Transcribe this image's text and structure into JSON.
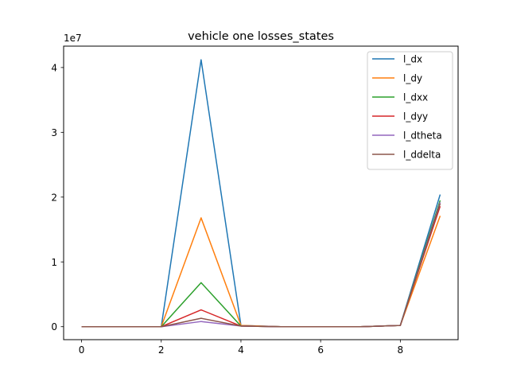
{
  "chart_data": {
    "type": "line",
    "title": "vehicle one losses_states",
    "xlabel": "",
    "ylabel": "",
    "offset_label": "1e7",
    "x": [
      0,
      1,
      2,
      3,
      4,
      5,
      6,
      7,
      8,
      9
    ],
    "xlim": [
      -0.45,
      9.45
    ],
    "ylim": [
      -0.2,
      4.33
    ],
    "y_scale": 10000000,
    "x_ticks": [
      0,
      2,
      4,
      6,
      8
    ],
    "y_ticks": [
      0,
      1,
      2,
      3,
      4
    ],
    "legend_position": "top-right",
    "series": [
      {
        "name": "l_dx",
        "color": "#1f77b4",
        "values": [
          0.0,
          0.0,
          0.0,
          4.12,
          0.02,
          0.0,
          0.0,
          0.0,
          0.02,
          2.04
        ]
      },
      {
        "name": "l_dy",
        "color": "#ff7f0e",
        "values": [
          0.0,
          0.0,
          0.0,
          1.68,
          0.02,
          0.0,
          0.0,
          0.0,
          0.02,
          1.71
        ]
      },
      {
        "name": "l_dxx",
        "color": "#2ca02c",
        "values": [
          0.0,
          0.0,
          0.0,
          0.68,
          0.01,
          0.0,
          0.0,
          0.0,
          0.02,
          1.95
        ]
      },
      {
        "name": "l_dyy",
        "color": "#d62728",
        "values": [
          0.0,
          0.0,
          0.0,
          0.26,
          0.01,
          0.0,
          0.0,
          0.0,
          0.02,
          1.86
        ]
      },
      {
        "name": "l_dtheta",
        "color": "#9467bd",
        "values": [
          0.0,
          0.0,
          0.0,
          0.08,
          0.01,
          0.0,
          0.0,
          0.0,
          0.02,
          1.92
        ]
      },
      {
        "name": "l_ddelta",
        "color": "#8c564b",
        "values": [
          0.0,
          0.0,
          0.0,
          0.13,
          0.01,
          0.0,
          0.0,
          0.0,
          0.02,
          1.9
        ]
      }
    ]
  }
}
